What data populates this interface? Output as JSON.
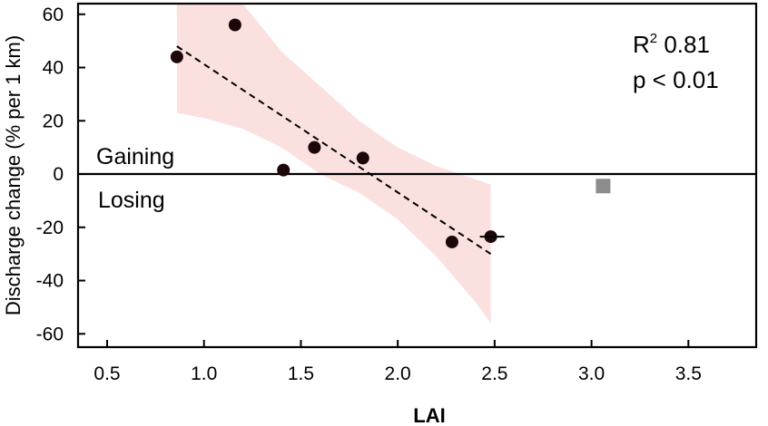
{
  "chart_data": {
    "type": "scatter",
    "xlabel": "LAI",
    "ylabel": "Discharge change (% per 1 km)",
    "xlim": [
      0.35,
      3.85
    ],
    "ylim": [
      -65,
      64
    ],
    "xticks": [
      "0.5",
      "1.0",
      "1.5",
      "2.0",
      "2.5",
      "3.0",
      "3.5"
    ],
    "yticks": [
      "60",
      "40",
      "20",
      "0",
      "-20",
      "-40",
      "-60"
    ],
    "points": [
      {
        "x": 0.86,
        "y": 44
      },
      {
        "x": 1.16,
        "y": 56
      },
      {
        "x": 1.41,
        "y": 1.5
      },
      {
        "x": 1.57,
        "y": 10
      },
      {
        "x": 1.82,
        "y": 6
      },
      {
        "x": 2.28,
        "y": -25.5
      },
      {
        "x": 2.48,
        "y": -23.5
      }
    ],
    "outlier": {
      "x": 3.06,
      "y": -4.5
    },
    "fit_line": {
      "x": [
        0.86,
        2.48
      ],
      "y": [
        48,
        -30
      ]
    },
    "confidence_band": {
      "x": [
        0.86,
        1.0,
        1.2,
        1.4,
        1.6,
        1.8,
        2.0,
        2.2,
        2.4,
        2.48
      ],
      "upper": [
        64,
        64,
        64,
        46,
        33,
        20,
        10,
        3,
        -2,
        -4
      ],
      "lower": [
        23,
        21,
        17,
        10,
        0,
        -7,
        -17,
        -31,
        -48,
        -56
      ]
    },
    "annotation": {
      "r2_label": "R",
      "r2_sup": "2",
      "r2_value": " 0.81",
      "p_text": "p < 0.01"
    },
    "region_labels": {
      "above": "Gaining",
      "below": "Losing"
    },
    "colors": {
      "band": "#fbe0e0",
      "points": "#1c0808",
      "outlier": "#8c8c8c",
      "line": "#000000"
    }
  }
}
